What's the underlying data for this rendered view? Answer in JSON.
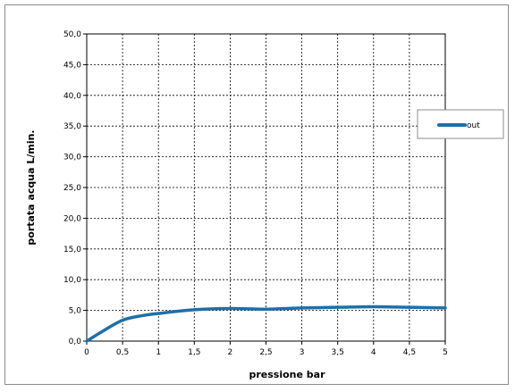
{
  "chart_data": {
    "type": "line",
    "xlabel": "pressione bar",
    "ylabel": "portata acqua  L/min.",
    "xlim": [
      0,
      5
    ],
    "ylim": [
      0,
      50
    ],
    "grid": true,
    "legend_position": "right",
    "x_tick_labels": [
      "0",
      "0,5",
      "1",
      "1,5",
      "2",
      "2,5",
      "3",
      "3,5",
      "4",
      "4,5",
      "5"
    ],
    "y_tick_labels": [
      "0,0",
      "5,0",
      "10,0",
      "15,0",
      "20,0",
      "25,0",
      "30,0",
      "35,0",
      "40,0",
      "45,0",
      "50,0"
    ],
    "series": [
      {
        "name": "out",
        "color": "#1f6fa8",
        "x": [
          0,
          0.25,
          0.5,
          0.75,
          1,
          1.5,
          2,
          2.5,
          3,
          3.5,
          4,
          4.5,
          5
        ],
        "y": [
          0,
          1.8,
          3.4,
          4.1,
          4.5,
          5.1,
          5.3,
          5.2,
          5.4,
          5.5,
          5.6,
          5.5,
          5.4
        ]
      }
    ]
  }
}
